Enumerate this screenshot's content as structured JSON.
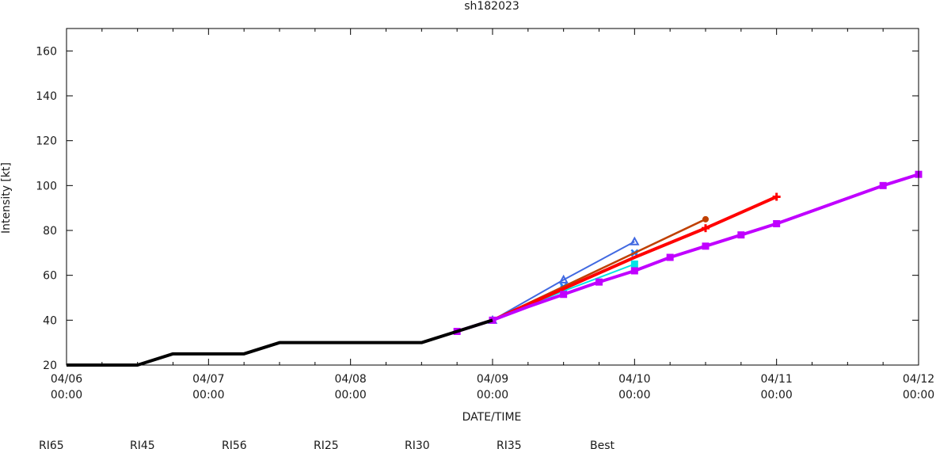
{
  "chart_data": {
    "type": "line",
    "title": "sh182023",
    "xlabel": "DATE/TIME",
    "ylabel": "Intensity [kt]",
    "ylim": [
      20,
      170
    ],
    "yticks": [
      20,
      40,
      60,
      80,
      100,
      120,
      140,
      160
    ],
    "xlim_hours": [
      0,
      144
    ],
    "xticks": [
      {
        "hour": 0,
        "date": "04/06",
        "time": "00:00"
      },
      {
        "hour": 24,
        "date": "04/07",
        "time": "00:00"
      },
      {
        "hour": 48,
        "date": "04/08",
        "time": "00:00"
      },
      {
        "hour": 72,
        "date": "04/09",
        "time": "00:00"
      },
      {
        "hour": 96,
        "date": "04/10",
        "time": "00:00"
      },
      {
        "hour": 120,
        "date": "04/11",
        "time": "00:00"
      },
      {
        "hour": 144,
        "date": "04/12",
        "time": "00:00"
      }
    ],
    "minor_tick_hours": 6,
    "grid": false,
    "legend_position": "bottom",
    "series": [
      {
        "name": "RI65",
        "color": "#c000ff",
        "width": 4,
        "marker": "square",
        "points": [
          [
            66,
            35
          ],
          [
            72,
            40
          ],
          [
            78,
            46
          ],
          [
            84,
            51.5
          ],
          [
            90,
            57
          ],
          [
            96,
            62
          ],
          [
            102,
            68
          ],
          [
            108,
            73
          ],
          [
            114,
            78
          ],
          [
            120,
            83
          ],
          [
            138,
            100
          ],
          [
            144,
            105
          ]
        ],
        "marker_hours": [
          66,
          72,
          84,
          90,
          96,
          102,
          108,
          114,
          120,
          138,
          144
        ]
      },
      {
        "name": "RI45",
        "color": "#c04000",
        "width": 2.5,
        "marker": "circle",
        "points": [
          [
            72,
            40
          ],
          [
            84,
            55
          ],
          [
            96,
            70
          ],
          [
            108,
            85
          ]
        ],
        "marker_hours": [
          108
        ]
      },
      {
        "name": "RI56",
        "color": "#ff0000",
        "width": 4,
        "marker": "plus",
        "points": [
          [
            72,
            40
          ],
          [
            84,
            54
          ],
          [
            96,
            68
          ],
          [
            108,
            81
          ],
          [
            120,
            95
          ]
        ],
        "marker_hours": [
          108,
          120
        ]
      },
      {
        "name": "RI25",
        "color": "#00e5e5",
        "width": 2,
        "marker": "square",
        "points": [
          [
            72,
            40
          ],
          [
            84,
            53
          ],
          [
            96,
            65
          ]
        ],
        "marker_hours": [
          84,
          96
        ]
      },
      {
        "name": "RI30",
        "color": "#1e80ff",
        "width": 2,
        "marker": "star",
        "points": [
          [
            72,
            40
          ],
          [
            84,
            55
          ],
          [
            96,
            70
          ]
        ],
        "marker_hours": [
          84,
          96
        ]
      },
      {
        "name": "RI35",
        "color": "#4169e1",
        "width": 2,
        "marker": "triangle",
        "points": [
          [
            72,
            40
          ],
          [
            84,
            58
          ],
          [
            96,
            75
          ]
        ],
        "marker_hours": [
          72,
          84,
          96
        ]
      },
      {
        "name": "Best",
        "color": "#000000",
        "width": 4,
        "marker": "none",
        "points": [
          [
            0,
            20
          ],
          [
            12,
            20
          ],
          [
            18,
            25
          ],
          [
            30,
            25
          ],
          [
            36,
            30
          ],
          [
            60,
            30
          ],
          [
            66,
            35
          ],
          [
            72,
            40
          ]
        ],
        "marker_hours": []
      }
    ]
  }
}
